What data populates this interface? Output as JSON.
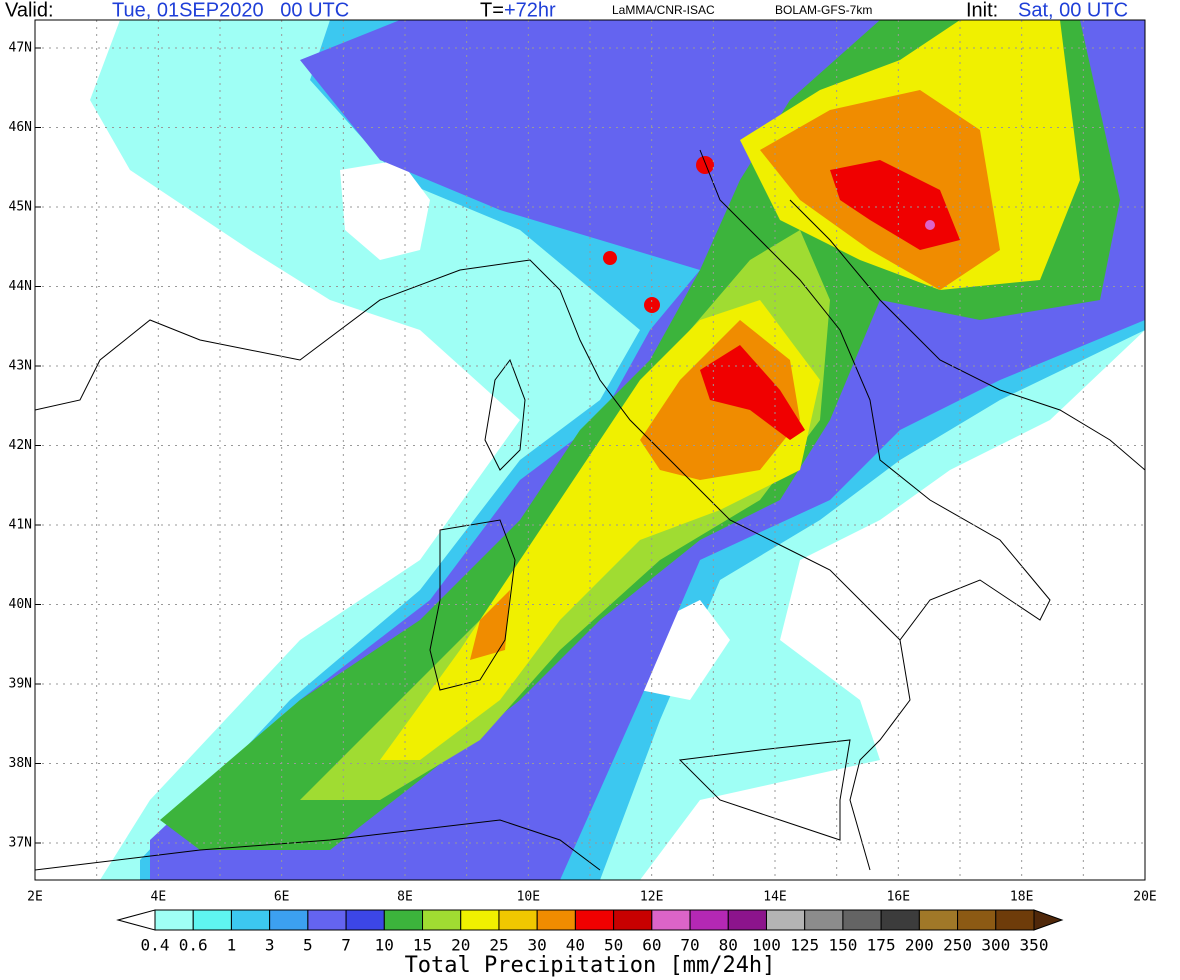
{
  "header": {
    "valid_label": "Valid:",
    "valid_time": "Tue, 01SEP2020   00 UTC",
    "forecast_label": "T=",
    "forecast_hour": "+72hr",
    "source": "LaMMA/CNR-ISAC",
    "model": "BOLAM-GFS-7km",
    "init_label": "Init:",
    "init_time": "Sat, 00 UTC"
  },
  "map": {
    "lon_labels": [
      "2E",
      "4E",
      "6E",
      "8E",
      "10E",
      "12E",
      "14E",
      "16E",
      "18E",
      "20E"
    ],
    "lat_labels": [
      "47N",
      "46N",
      "45N",
      "44N",
      "43N",
      "42N",
      "41N",
      "40N",
      "39N",
      "38N",
      "37N"
    ]
  },
  "colorbar": {
    "levels": [
      "0.4",
      "0.6",
      "1",
      "3",
      "5",
      "7",
      "10",
      "15",
      "20",
      "25",
      "30",
      "40",
      "50",
      "60",
      "70",
      "80",
      "100",
      "125",
      "150",
      "175",
      "200",
      "250",
      "300",
      "350"
    ],
    "colors": [
      "#ffffff",
      "#9ffff5",
      "#5ff5f0",
      "#3cc8f0",
      "#3ca0f0",
      "#6464f0",
      "#3c46e6",
      "#3cb43c",
      "#a0dc32",
      "#f0f000",
      "#f0c800",
      "#f08c00",
      "#f00000",
      "#c80000",
      "#dc64c8",
      "#b428b4",
      "#8c148c",
      "#b4b4b4",
      "#8c8c8c",
      "#646464",
      "#3c3c3c",
      "#a07828",
      "#8c5a14",
      "#6e3c0a",
      "#50280a"
    ],
    "title": "Total Precipitation [mm/24h]"
  }
}
